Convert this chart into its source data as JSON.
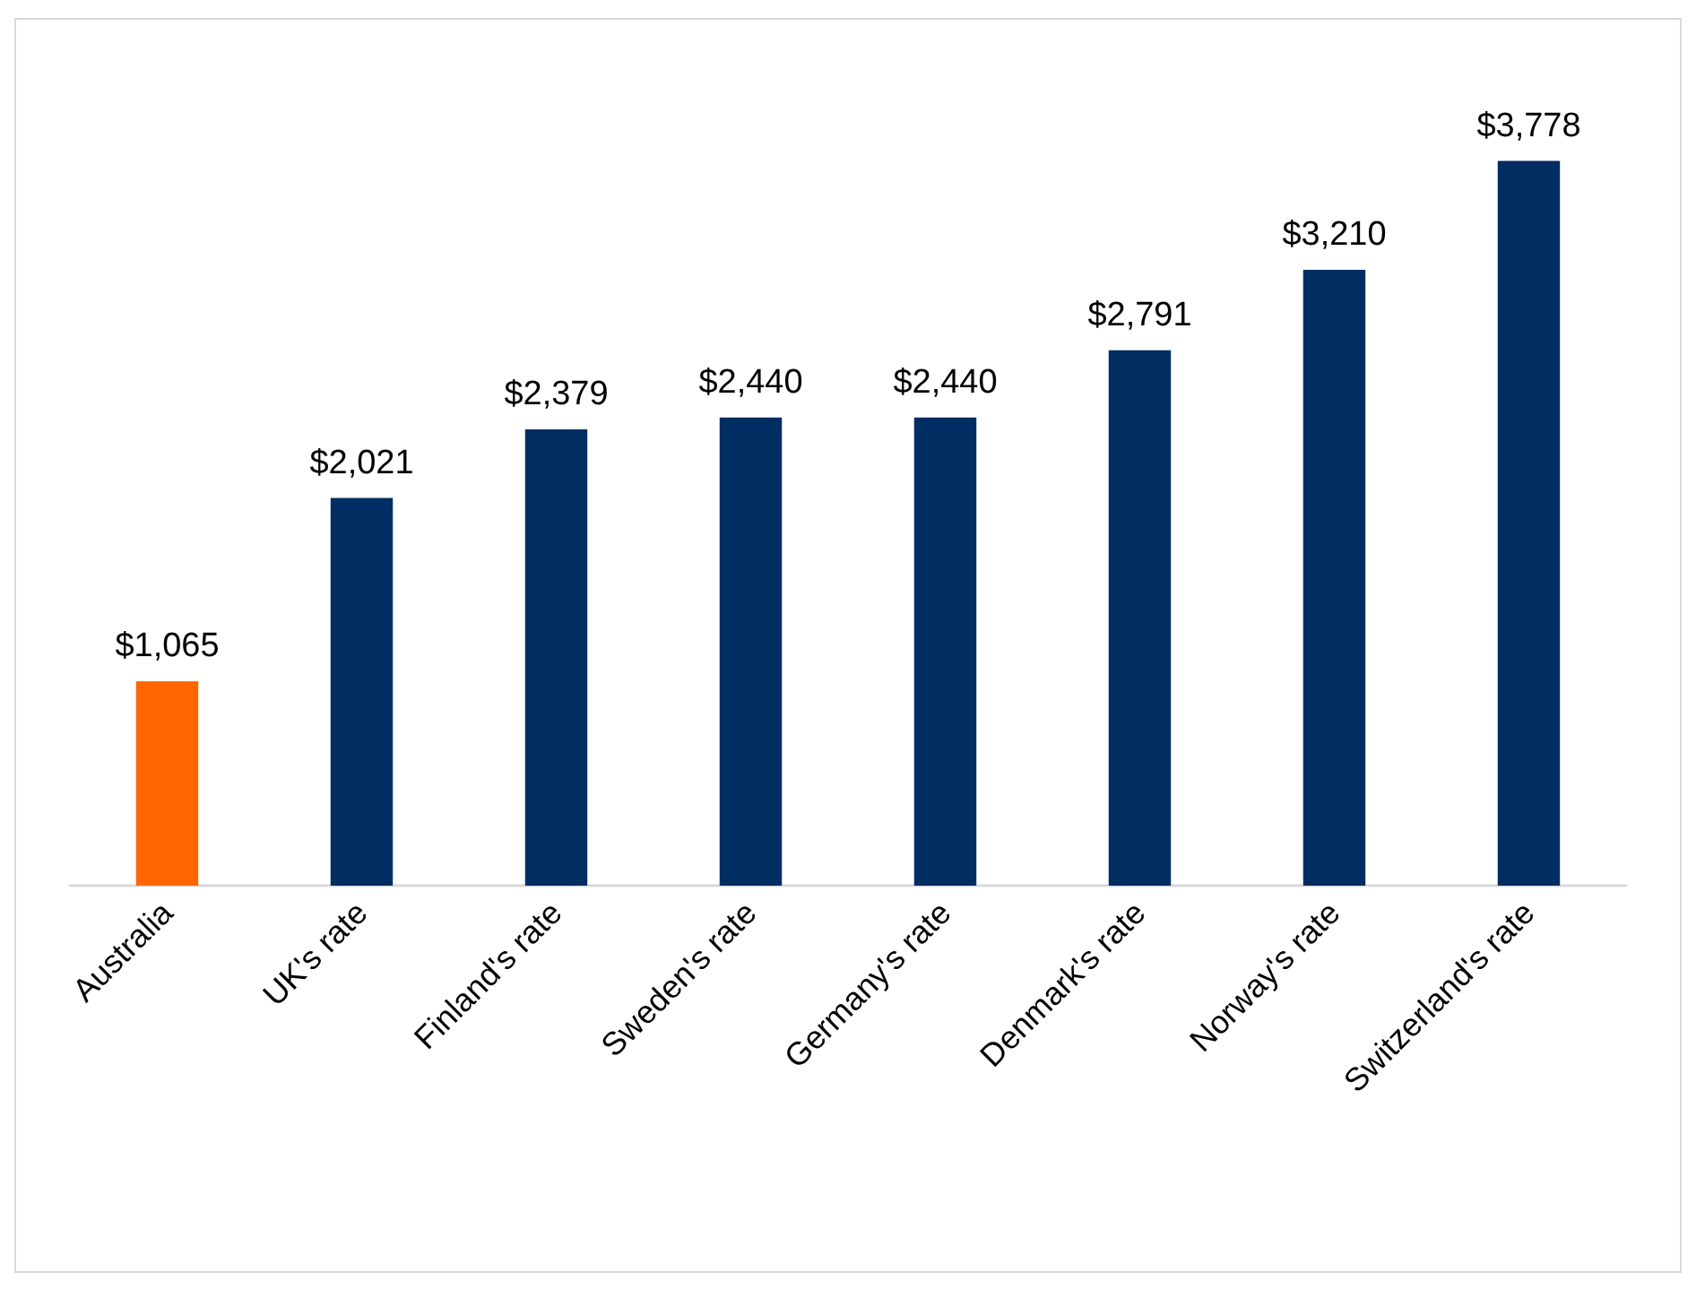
{
  "chart_data": {
    "type": "bar",
    "categories": [
      "Australia",
      "UK's rate",
      "Finland's rate",
      "Sweden's rate",
      "Germany's rate",
      "Denmark's rate",
      "Norway's rate",
      "Switzerland's rate"
    ],
    "values": [
      1065,
      2021,
      2379,
      2440,
      2440,
      2791,
      3210,
      3778
    ],
    "colors": [
      "#ff6600",
      "#002d62",
      "#002d62",
      "#002d62",
      "#002d62",
      "#002d62",
      "#002d62",
      "#002d62"
    ],
    "value_labels": [
      "$1,065",
      "$2,021",
      "$2,379",
      "$2,440",
      "$2,440",
      "$2,791",
      "$3,210",
      "$3,778"
    ]
  }
}
